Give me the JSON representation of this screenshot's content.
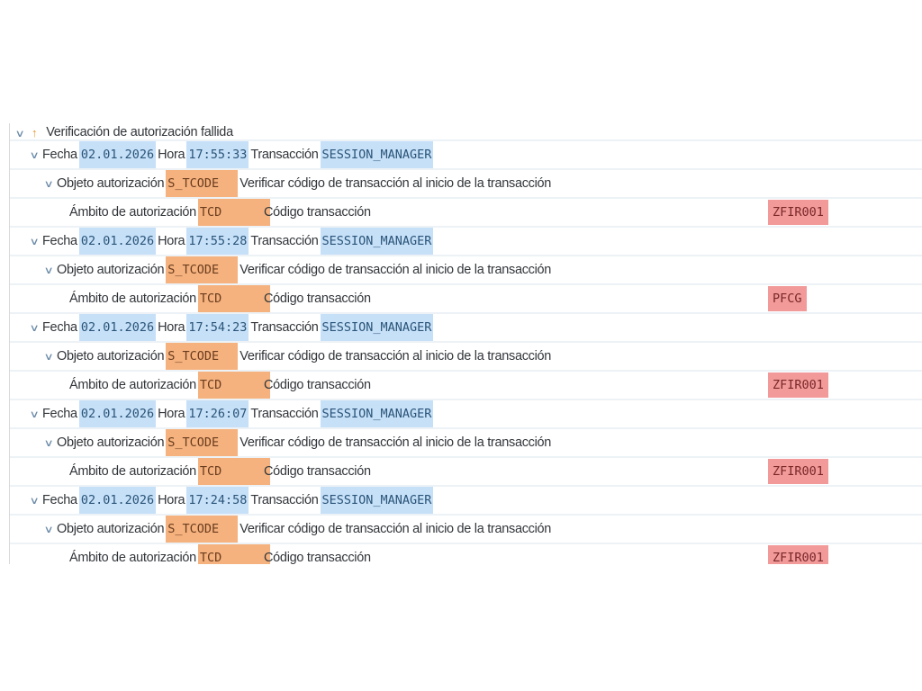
{
  "root": {
    "label": "Verificación de autorización fallida"
  },
  "labels": {
    "fecha": "Fecha",
    "hora": "Hora",
    "transaccion": "Transacción",
    "objeto": "Objeto autorización",
    "ambito": "Ámbito de autorización",
    "codigo": "Código transacción"
  },
  "entries": [
    {
      "fecha": "02.01.2026",
      "hora": "17:55:33",
      "transaccion": "SESSION_MANAGER",
      "objeto": "S_TCODE",
      "objeto_desc": "Verificar código de transacción al inicio de la transacción",
      "ambito": "TCD",
      "codigo": "ZFIR001"
    },
    {
      "fecha": "02.01.2026",
      "hora": "17:55:28",
      "transaccion": "SESSION_MANAGER",
      "objeto": "S_TCODE",
      "objeto_desc": "Verificar código de transacción al inicio de la transacción",
      "ambito": "TCD",
      "codigo": "PFCG"
    },
    {
      "fecha": "02.01.2026",
      "hora": "17:54:23",
      "transaccion": "SESSION_MANAGER",
      "objeto": "S_TCODE",
      "objeto_desc": "Verificar código de transacción al inicio de la transacción",
      "ambito": "TCD",
      "codigo": "ZFIR001"
    },
    {
      "fecha": "02.01.2026",
      "hora": "17:26:07",
      "transaccion": "SESSION_MANAGER",
      "objeto": "S_TCODE",
      "objeto_desc": "Verificar código de transacción al inicio de la transacción",
      "ambito": "TCD",
      "codigo": "ZFIR001"
    },
    {
      "fecha": "02.01.2026",
      "hora": "17:24:58",
      "transaccion": "SESSION_MANAGER",
      "objeto": "S_TCODE",
      "objeto_desc": "Verificar código de transacción al inicio de la transacción",
      "ambito": "TCD",
      "codigo": "ZFIR001"
    }
  ],
  "colors": {
    "value_blue": "#c6e0f8",
    "value_orange": "#f5b27e",
    "value_red": "#f29a9a",
    "warning": "#e8932d"
  }
}
